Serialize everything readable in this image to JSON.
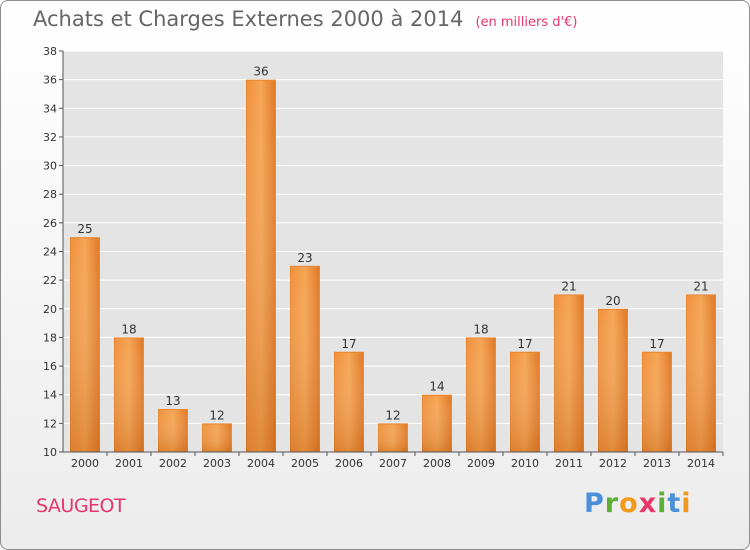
{
  "title": "Achats et Charges Externes 2000 à 2014",
  "unit": "(en milliers d'€)",
  "commune": "SAUGEOT",
  "logo": {
    "parts": [
      "P",
      "r",
      "o",
      "x",
      "i",
      "t",
      "i"
    ]
  },
  "colors": {
    "bar_top": "#f6a553",
    "bar_bottom": "#dd7422",
    "accent": "#e8356a"
  },
  "chart_data": {
    "type": "bar",
    "title": "Achats et Charges Externes 2000 à 2014",
    "categories": [
      "2000",
      "2001",
      "2002",
      "2003",
      "2004",
      "2005",
      "2006",
      "2007",
      "2008",
      "2009",
      "2010",
      "2011",
      "2012",
      "2013",
      "2014"
    ],
    "values": [
      25,
      18,
      13,
      12,
      36,
      23,
      17,
      12,
      14,
      18,
      17,
      21,
      20,
      17,
      21
    ],
    "ylim": [
      10,
      38
    ],
    "yticks": [
      10,
      12,
      14,
      16,
      18,
      20,
      22,
      24,
      26,
      28,
      30,
      32,
      34,
      36,
      38
    ],
    "grid": true
  }
}
